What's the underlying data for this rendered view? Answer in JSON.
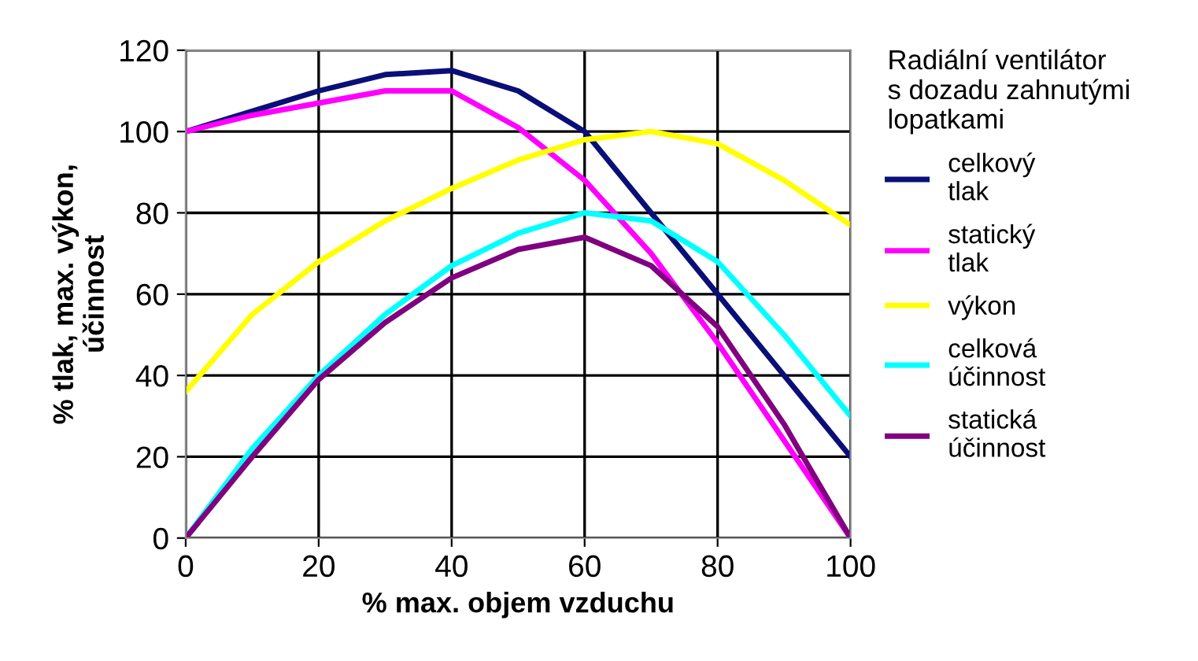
{
  "chart_data": {
    "type": "line",
    "xlabel": "% max. objem vzduchu",
    "ylabel": "% tlak, max. výkon,\núčinnost",
    "legend_title": "Radiální ventilátor\ns dozadu zahnutými\nlopatkami",
    "x": [
      0,
      10,
      20,
      30,
      40,
      50,
      60,
      70,
      80,
      90,
      100
    ],
    "series": [
      {
        "name": "celkový tlak",
        "color": "#0a0f78",
        "values": [
          100,
          105,
          110,
          114,
          115,
          110,
          100,
          80,
          60,
          40,
          20
        ]
      },
      {
        "name": "statický tlak",
        "color": "#ff00ff",
        "values": [
          100,
          104,
          107,
          110,
          110,
          101,
          88,
          70,
          48,
          24,
          0
        ]
      },
      {
        "name": "výkon",
        "color": "#ffff00",
        "values": [
          36,
          55,
          68,
          78,
          86,
          93,
          98,
          100,
          97,
          88,
          77
        ]
      },
      {
        "name": "celková účinnost",
        "color": "#00ffff",
        "values": [
          0,
          22,
          40,
          55,
          67,
          75,
          80,
          78,
          68,
          50,
          30
        ]
      },
      {
        "name": "statická účinnost",
        "color": "#800080",
        "values": [
          0,
          20,
          39,
          53,
          64,
          71,
          74,
          67,
          52,
          28,
          0
        ]
      }
    ],
    "xlim": [
      0,
      100
    ],
    "xticks": [
      0,
      20,
      40,
      60,
      80,
      100
    ],
    "ylim": [
      0,
      120
    ],
    "yticks": [
      0,
      20,
      40,
      60,
      80,
      100,
      120
    ],
    "grid": true,
    "legend": "right",
    "marker": "none",
    "line_style": "solid"
  }
}
